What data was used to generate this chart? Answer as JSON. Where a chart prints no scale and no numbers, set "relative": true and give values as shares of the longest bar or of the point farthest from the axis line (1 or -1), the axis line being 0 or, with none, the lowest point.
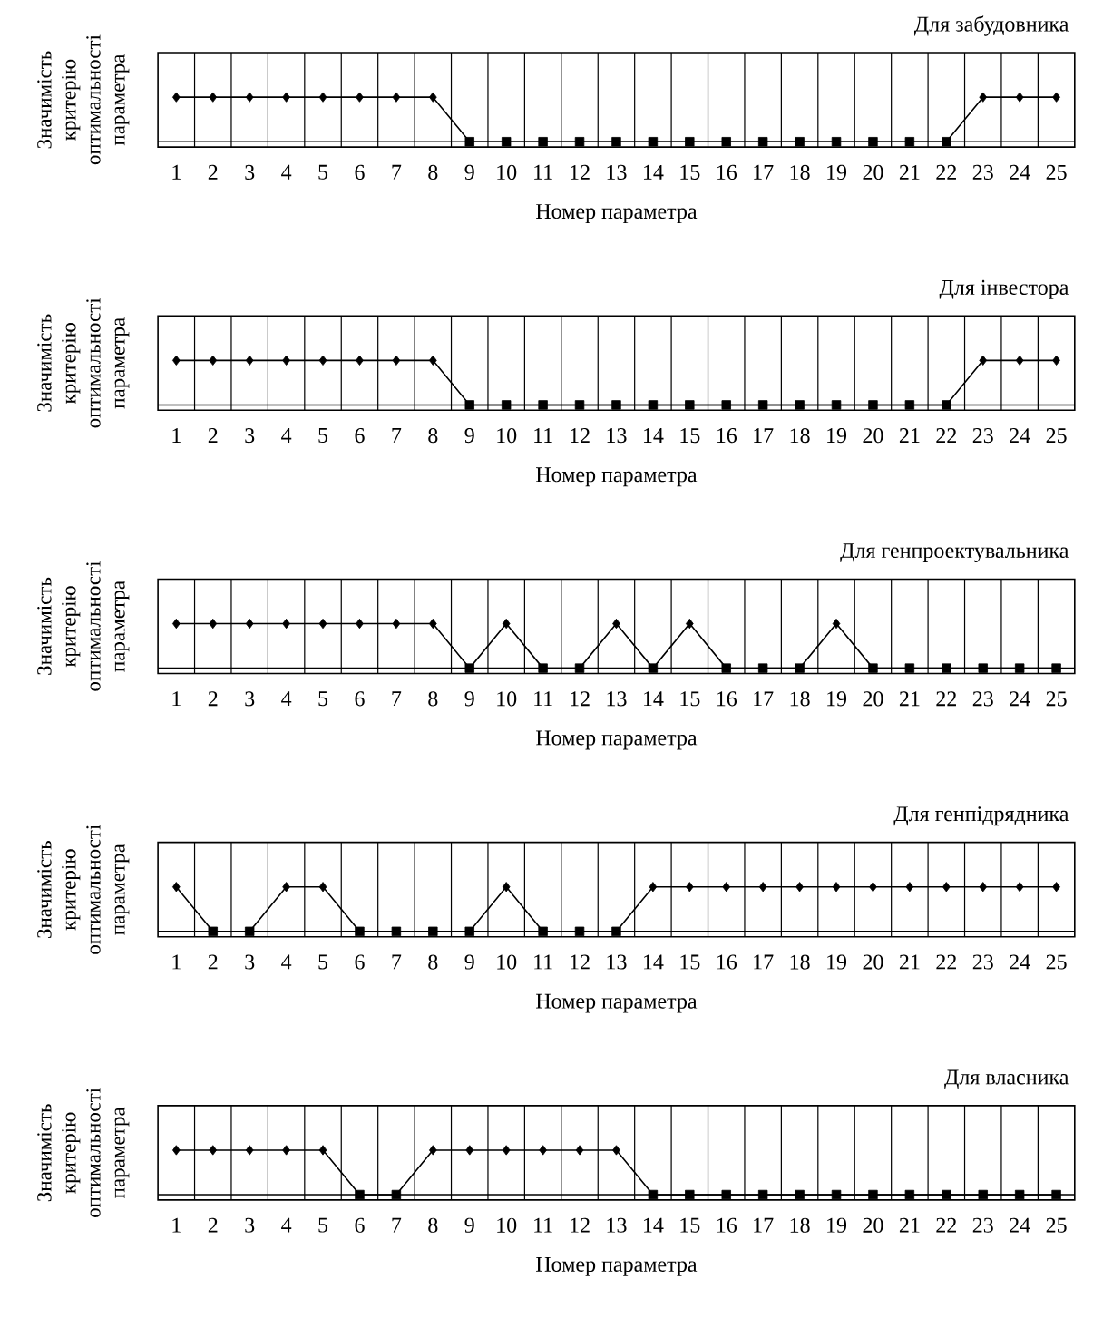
{
  "chart_data": [
    {
      "type": "line",
      "title": "Для забудовника",
      "xlabel": "Номер параметра",
      "ylabel": "Значимість критерію оптимальності параметра",
      "relative": true,
      "grid": "x",
      "tick_labels": "x",
      "categories": [
        "1",
        "2",
        "3",
        "4",
        "5",
        "6",
        "7",
        "8",
        "9",
        "10",
        "11",
        "12",
        "13",
        "14",
        "15",
        "16",
        "17",
        "18",
        "19",
        "20",
        "21",
        "22",
        "23",
        "24",
        "25"
      ],
      "series": [
        {
          "type": "line",
          "color": "#000000",
          "marker": "none",
          "values": [
            1,
            1,
            1,
            1,
            1,
            1,
            1,
            1,
            0,
            0,
            0,
            0,
            0,
            0,
            0,
            0,
            0,
            0,
            0,
            0,
            0,
            0,
            1,
            1,
            1
          ]
        },
        {
          "type": "scatter",
          "color": "#000000",
          "marker": "diamond",
          "values": [
            1,
            1,
            1,
            1,
            1,
            1,
            1,
            1,
            null,
            null,
            null,
            null,
            null,
            null,
            null,
            null,
            null,
            null,
            null,
            null,
            null,
            null,
            1,
            1,
            1
          ]
        },
        {
          "type": "scatter",
          "color": "#000000",
          "marker": "square",
          "values": [
            null,
            null,
            null,
            null,
            null,
            null,
            null,
            null,
            0,
            0,
            0,
            0,
            0,
            0,
            0,
            0,
            0,
            0,
            0,
            0,
            0,
            0,
            null,
            null,
            null
          ]
        }
      ]
    },
    {
      "type": "line",
      "title": "Для інвестора",
      "xlabel": "Номер параметра",
      "ylabel": "Значимість критерію оптимальності параметра",
      "relative": true,
      "grid": "x",
      "tick_labels": "x",
      "categories": [
        "1",
        "2",
        "3",
        "4",
        "5",
        "6",
        "7",
        "8",
        "9",
        "10",
        "11",
        "12",
        "13",
        "14",
        "15",
        "16",
        "17",
        "18",
        "19",
        "20",
        "21",
        "22",
        "23",
        "24",
        "25"
      ],
      "series": [
        {
          "type": "line",
          "color": "#000000",
          "marker": "none",
          "values": [
            1,
            1,
            1,
            1,
            1,
            1,
            1,
            1,
            0,
            0,
            0,
            0,
            0,
            0,
            0,
            0,
            0,
            0,
            0,
            0,
            0,
            0,
            1,
            1,
            1
          ]
        },
        {
          "type": "scatter",
          "color": "#000000",
          "marker": "diamond",
          "values": [
            1,
            1,
            1,
            1,
            1,
            1,
            1,
            1,
            null,
            null,
            null,
            null,
            null,
            null,
            null,
            null,
            null,
            null,
            null,
            null,
            null,
            null,
            1,
            1,
            1
          ]
        },
        {
          "type": "scatter",
          "color": "#000000",
          "marker": "square",
          "values": [
            null,
            null,
            null,
            null,
            null,
            null,
            null,
            null,
            0,
            0,
            0,
            0,
            0,
            0,
            0,
            0,
            0,
            0,
            0,
            0,
            0,
            0,
            null,
            null,
            null
          ]
        }
      ]
    },
    {
      "type": "line",
      "title": "Для генпроектувальника",
      "xlabel": "Номер параметра",
      "ylabel": "Значимість критерію оптимальності параметра",
      "relative": true,
      "grid": "x",
      "tick_labels": "x",
      "categories": [
        "1",
        "2",
        "3",
        "4",
        "5",
        "6",
        "7",
        "8",
        "9",
        "10",
        "11",
        "12",
        "13",
        "14",
        "15",
        "16",
        "17",
        "18",
        "19",
        "20",
        "21",
        "22",
        "23",
        "24",
        "25"
      ],
      "series": [
        {
          "type": "line",
          "color": "#000000",
          "marker": "none",
          "values": [
            1,
            1,
            1,
            1,
            1,
            1,
            1,
            1,
            0,
            1,
            0,
            0,
            1,
            0,
            1,
            0,
            0,
            0,
            1,
            0,
            0,
            0,
            0,
            0,
            0
          ]
        },
        {
          "type": "scatter",
          "color": "#000000",
          "marker": "diamond",
          "values": [
            1,
            1,
            1,
            1,
            1,
            1,
            1,
            1,
            null,
            1,
            null,
            null,
            1,
            null,
            1,
            null,
            null,
            null,
            1,
            null,
            null,
            null,
            null,
            null,
            null
          ]
        },
        {
          "type": "scatter",
          "color": "#000000",
          "marker": "square",
          "values": [
            null,
            null,
            null,
            null,
            null,
            null,
            null,
            null,
            0,
            null,
            0,
            0,
            null,
            0,
            null,
            0,
            0,
            0,
            null,
            0,
            0,
            0,
            0,
            0,
            0
          ]
        }
      ]
    },
    {
      "type": "line",
      "title": "Для генпідрядника",
      "xlabel": "Номер параметра",
      "ylabel": "Значимість критерію оптимальності параметра",
      "relative": true,
      "grid": "x",
      "tick_labels": "x",
      "categories": [
        "1",
        "2",
        "3",
        "4",
        "5",
        "6",
        "7",
        "8",
        "9",
        "10",
        "11",
        "12",
        "13",
        "14",
        "15",
        "16",
        "17",
        "18",
        "19",
        "20",
        "21",
        "22",
        "23",
        "24",
        "25"
      ],
      "series": [
        {
          "type": "line",
          "color": "#000000",
          "marker": "none",
          "values": [
            1,
            0,
            0,
            1,
            1,
            0,
            0,
            0,
            0,
            1,
            0,
            0,
            0,
            1,
            1,
            1,
            1,
            1,
            1,
            1,
            1,
            1,
            1,
            1,
            1
          ]
        },
        {
          "type": "scatter",
          "color": "#000000",
          "marker": "diamond",
          "values": [
            1,
            null,
            null,
            1,
            1,
            null,
            null,
            null,
            null,
            1,
            null,
            null,
            null,
            1,
            1,
            1,
            1,
            1,
            1,
            1,
            1,
            1,
            1,
            1,
            1
          ]
        },
        {
          "type": "scatter",
          "color": "#000000",
          "marker": "square",
          "values": [
            null,
            0,
            0,
            null,
            null,
            0,
            0,
            0,
            0,
            null,
            0,
            0,
            0,
            null,
            null,
            null,
            null,
            null,
            null,
            null,
            null,
            null,
            null,
            null,
            null
          ]
        }
      ]
    },
    {
      "type": "line",
      "title": "Для власника",
      "xlabel": "Номер параметра",
      "ylabel": "Значимість критерію оптимальності параметра",
      "relative": true,
      "grid": "x",
      "tick_labels": "x",
      "categories": [
        "1",
        "2",
        "3",
        "4",
        "5",
        "6",
        "7",
        "8",
        "9",
        "10",
        "11",
        "12",
        "13",
        "14",
        "15",
        "16",
        "17",
        "18",
        "19",
        "20",
        "21",
        "22",
        "23",
        "24",
        "25"
      ],
      "series": [
        {
          "type": "line",
          "color": "#000000",
          "marker": "none",
          "values": [
            1,
            1,
            1,
            1,
            1,
            0,
            0,
            1,
            1,
            1,
            1,
            1,
            1,
            0,
            0,
            0,
            0,
            0,
            0,
            0,
            0,
            0,
            0,
            0,
            0
          ]
        },
        {
          "type": "scatter",
          "color": "#000000",
          "marker": "diamond",
          "values": [
            1,
            1,
            1,
            1,
            1,
            null,
            null,
            1,
            1,
            1,
            1,
            1,
            1,
            null,
            null,
            null,
            null,
            null,
            null,
            null,
            null,
            null,
            null,
            null,
            null
          ]
        },
        {
          "type": "scatter",
          "color": "#000000",
          "marker": "square",
          "values": [
            null,
            null,
            null,
            null,
            null,
            0,
            0,
            null,
            null,
            null,
            null,
            null,
            null,
            0,
            0,
            0,
            0,
            0,
            0,
            0,
            0,
            0,
            0,
            0,
            0
          ]
        }
      ]
    }
  ]
}
